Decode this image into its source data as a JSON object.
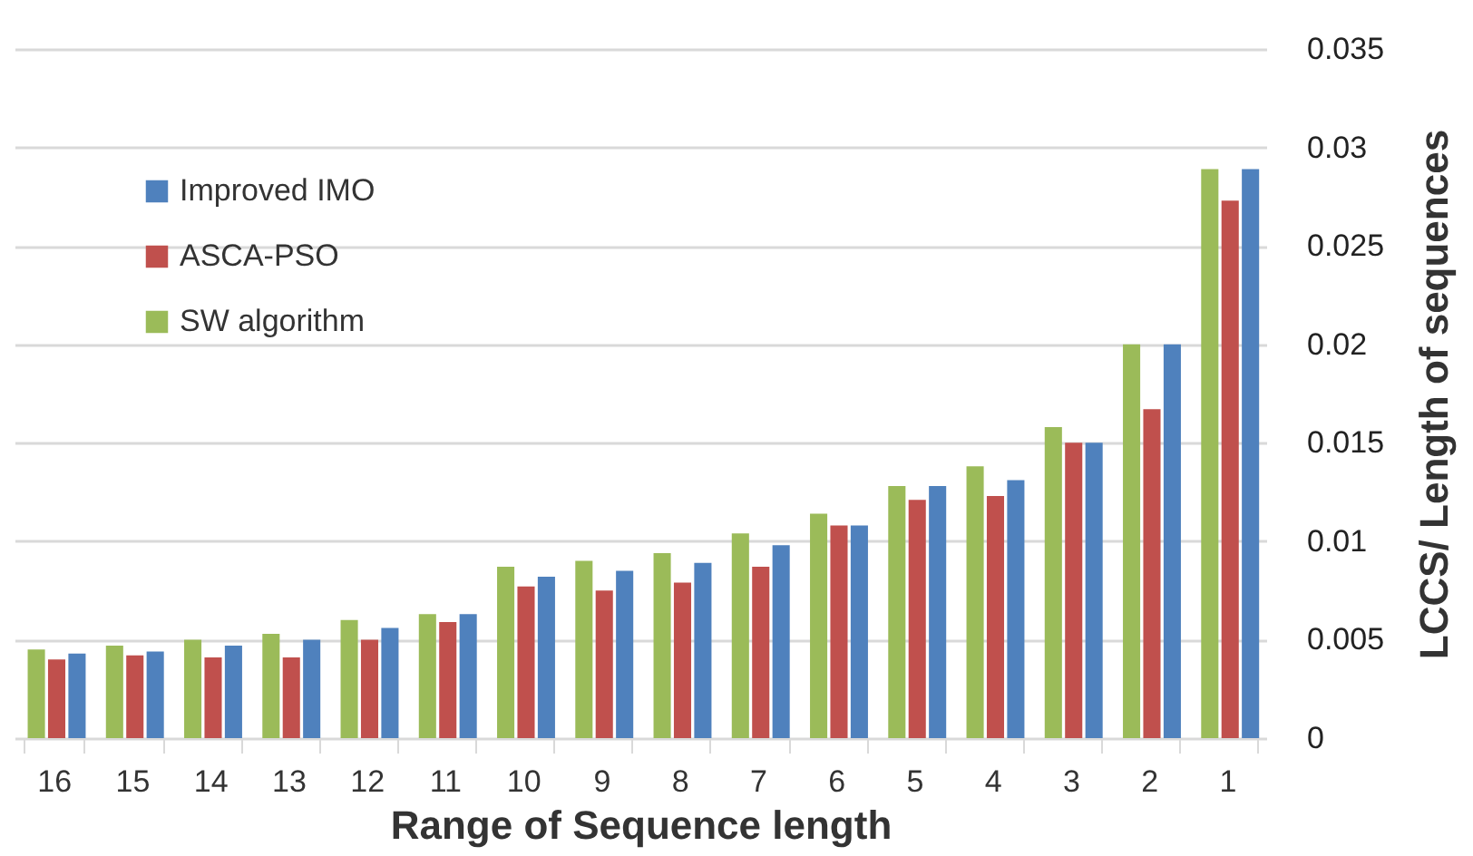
{
  "chart_data": {
    "type": "bar",
    "xlabel": "Range of Sequence length",
    "ylabel": "LCCS/ Length of sequences",
    "categories": [
      "16",
      "15",
      "14",
      "13",
      "12",
      "11",
      "10",
      "9",
      "8",
      "7",
      "6",
      "5",
      "4",
      "3",
      "2",
      "1"
    ],
    "series": [
      {
        "name": "SW algorithm",
        "color": "#9bbb59",
        "values": [
          0.0045,
          0.0047,
          0.005,
          0.0053,
          0.006,
          0.0063,
          0.0087,
          0.009,
          0.0094,
          0.0104,
          0.0114,
          0.0128,
          0.0138,
          0.0158,
          0.02,
          0.0289
        ]
      },
      {
        "name": "ASCA-PSO",
        "color": "#c0504d",
        "values": [
          0.004,
          0.0042,
          0.0041,
          0.0041,
          0.005,
          0.0059,
          0.0077,
          0.0075,
          0.0079,
          0.0087,
          0.0108,
          0.0121,
          0.0123,
          0.015,
          0.0167,
          0.0273
        ]
      },
      {
        "name": "Improved IMO",
        "color": "#4f81bd",
        "values": [
          0.0043,
          0.0044,
          0.0047,
          0.005,
          0.0056,
          0.0063,
          0.0082,
          0.0085,
          0.0089,
          0.0098,
          0.0108,
          0.0128,
          0.0131,
          0.015,
          0.02,
          0.0289
        ]
      }
    ],
    "ylim": [
      0,
      0.035
    ],
    "yticks": [
      0,
      0.005,
      0.01,
      0.015,
      0.02,
      0.025,
      0.03,
      0.035
    ],
    "grid": "y",
    "legend": "top left"
  }
}
